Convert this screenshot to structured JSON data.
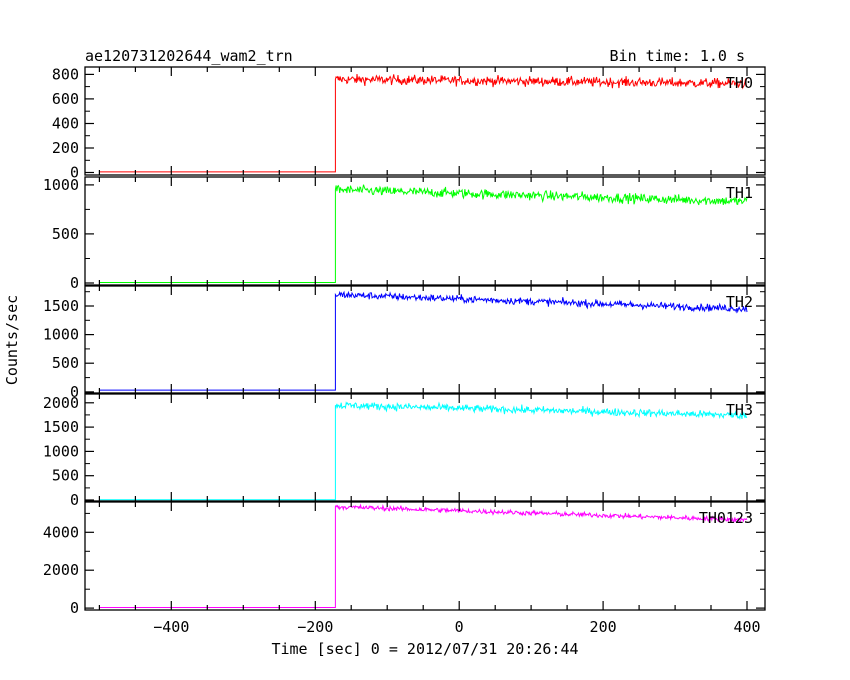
{
  "header": {
    "title": "ae120731202644_wam2_trn",
    "bin_time": "Bin time: 1.0 s"
  },
  "chart_data": {
    "type": "line",
    "xlabel": "Time [sec] 0 = 2012/07/31 20:26:44",
    "ylabel": "Counts/sec",
    "xlim": [
      -520,
      425
    ],
    "x_ticks": [
      -400,
      -200,
      0,
      200,
      400
    ],
    "x_tick_labels": [
      "−400",
      "−200",
      "0",
      "200",
      "400"
    ],
    "background_level_end_x": -172,
    "x_end": 400,
    "panels": [
      {
        "name": "TH0",
        "color": "#ff0000",
        "ylim": [
          -20,
          860
        ],
        "y_ticks": [
          0,
          200,
          400,
          600,
          800
        ],
        "y_tick_labels": [
          "0",
          "200",
          "400",
          "600",
          "800"
        ],
        "background": 5,
        "peak": 760,
        "end": 725,
        "noise": 28
      },
      {
        "name": "TH1",
        "color": "#00ff00",
        "ylim": [
          -20,
          1080
        ],
        "y_ticks": [
          0,
          500,
          1000
        ],
        "y_tick_labels": [
          "0",
          "500",
          "1000"
        ],
        "background": 5,
        "peak": 950,
        "end": 830,
        "noise": 35
      },
      {
        "name": "TH2",
        "color": "#0000ff",
        "ylim": [
          -20,
          1850
        ],
        "y_ticks": [
          0,
          500,
          1000,
          1500
        ],
        "y_tick_labels": [
          "0",
          "500",
          "1000",
          "1500"
        ],
        "background": 30,
        "peak": 1700,
        "end": 1450,
        "noise": 45
      },
      {
        "name": "TH3",
        "color": "#00ffff",
        "ylim": [
          -20,
          2180
        ],
        "y_ticks": [
          0,
          500,
          1000,
          1500,
          2000
        ],
        "y_tick_labels": [
          "0",
          "500",
          "1000",
          "1500",
          "2000"
        ],
        "background": 5,
        "peak": 1950,
        "end": 1740,
        "noise": 55
      },
      {
        "name": "TH0123",
        "color": "#ff00ff",
        "ylim": [
          -100,
          5600
        ],
        "y_ticks": [
          0,
          2000,
          4000
        ],
        "y_tick_labels": [
          "0",
          "2000",
          "4000"
        ],
        "background": 30,
        "peak": 5350,
        "end": 4650,
        "noise": 90
      }
    ]
  }
}
